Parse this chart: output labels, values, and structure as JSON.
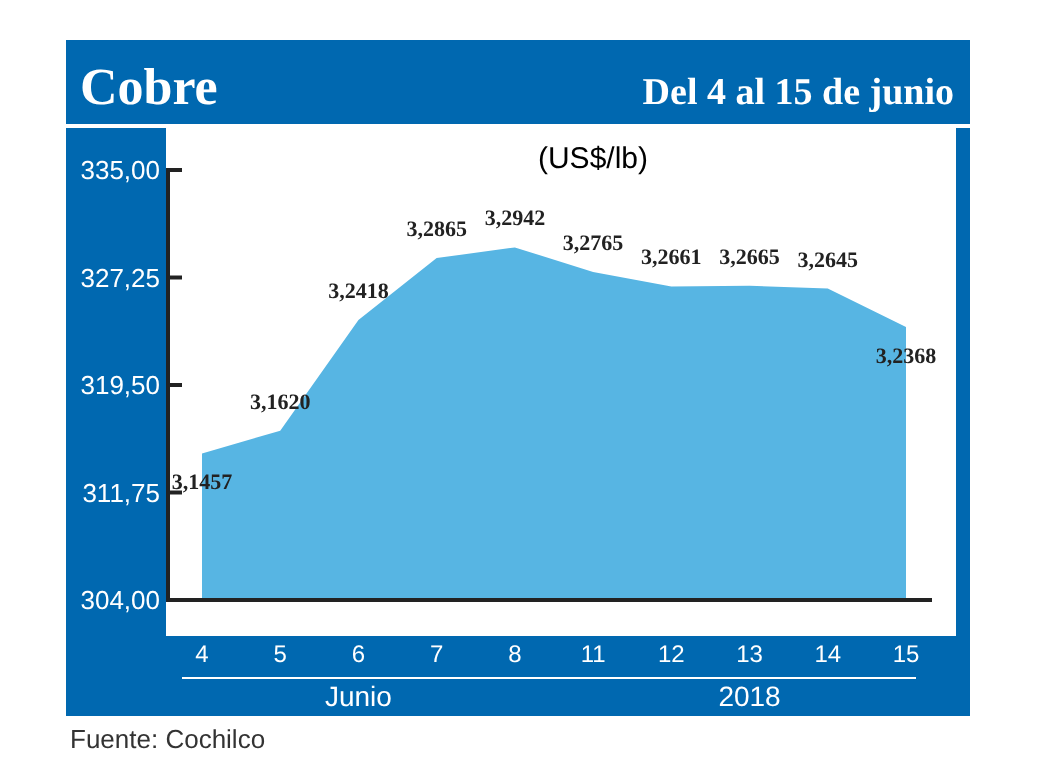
{
  "chart_data": {
    "type": "area",
    "title": "Cobre",
    "subtitle": "Del 4 al 15 de junio",
    "ylabel": "(US$/lb)",
    "categories": [
      "4",
      "5",
      "6",
      "7",
      "8",
      "11",
      "12",
      "13",
      "14",
      "15"
    ],
    "series": [
      {
        "color": "#57b5e3",
        "values": [
          314.57,
          316.2,
          324.18,
          328.65,
          329.42,
          327.65,
          326.61,
          326.65,
          326.45,
          323.68
        ],
        "value_labels": [
          "3,1457",
          "3,1620",
          "3,2418",
          "3,2865",
          "3,2942",
          "3,2765",
          "3,2661",
          "3,2665",
          "3,2645",
          "3,2368"
        ]
      }
    ],
    "ylim": [
      304,
      335
    ],
    "yticks": [
      {
        "value": 304,
        "label": "304,00"
      },
      {
        "value": 311.75,
        "label": "311,75"
      },
      {
        "value": 319.5,
        "label": "319,50"
      },
      {
        "value": 327.25,
        "label": "327,25"
      },
      {
        "value": 335,
        "label": "335,00"
      }
    ],
    "annotations": [
      "Junio",
      "2018",
      "Fuente: Cochilco"
    ],
    "grid": false
  }
}
